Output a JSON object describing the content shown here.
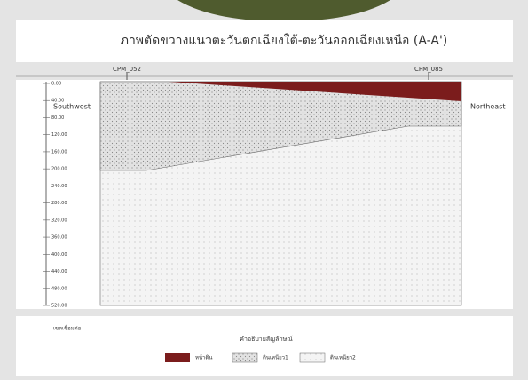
{
  "title": "ภาพตัดขวางแนวตะวันตกเฉียงใต้-ตะวันออกเฉียงเหนือ (A-A')",
  "boreholes": [
    "CPM_052",
    "CPM_085"
  ],
  "directions": {
    "left": "Southwest",
    "right": "Northeast"
  },
  "depth_axis": {
    "ticks": [
      "0.00",
      "40.00",
      "80.00",
      "120.00",
      "160.00",
      "200.00",
      "240.00",
      "280.00",
      "320.00",
      "360.00",
      "400.00",
      "440.00",
      "480.00",
      "520.00"
    ]
  },
  "legend": {
    "note": "เขตเชื่อมต่อ",
    "title": "คำอธิบายสัญลักษณ์",
    "items": [
      "หน้าดิน",
      "ดินเหนียว1",
      "ดินเหนียว2"
    ]
  }
}
